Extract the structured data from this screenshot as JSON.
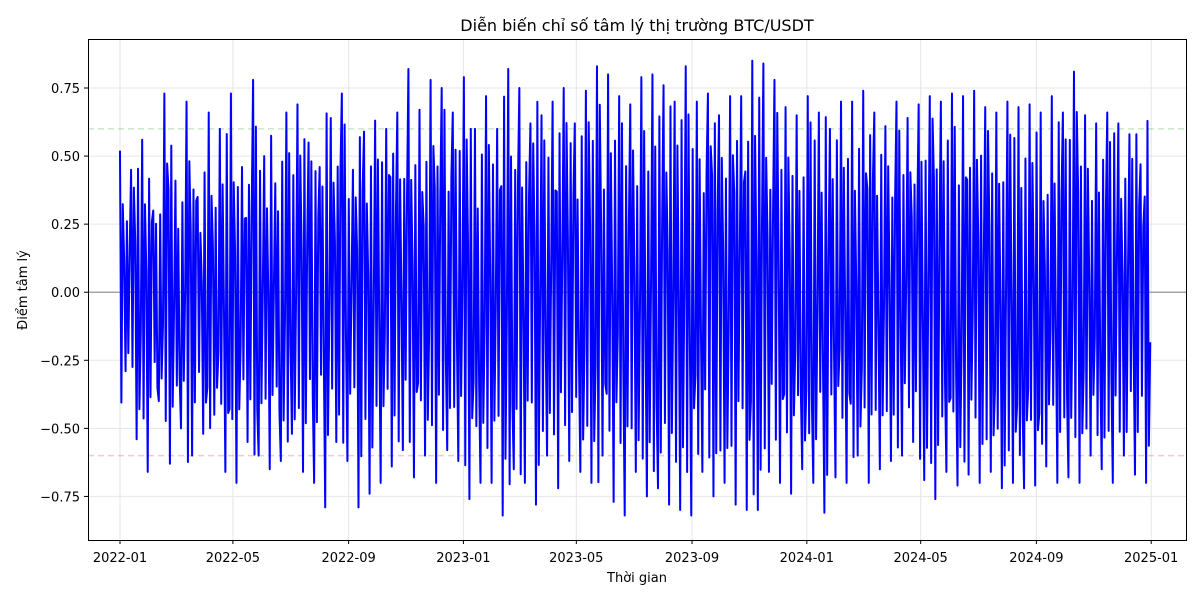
{
  "chart_data": {
    "type": "line",
    "title": "Diễn biến chỉ số tâm lý thị trường BTC/USDT",
    "xlabel": "Thời gian",
    "ylabel": "Điểm tâm lý",
    "x_range": [
      "2021-11-28",
      "2025-02-07"
    ],
    "ylim": [
      -0.91,
      0.93
    ],
    "x_ticks": [
      "2022-01",
      "2022-05",
      "2022-09",
      "2023-01",
      "2023-05",
      "2023-09",
      "2024-01",
      "2024-05",
      "2024-09",
      "2025-01"
    ],
    "y_ticks": [
      "−0.75",
      "−0.50",
      "−0.25",
      "0.00",
      "0.25",
      "0.50",
      "0.75"
    ],
    "grid": true,
    "reference_lines": [
      {
        "y": 0.6,
        "color": "#2ca02c",
        "style": "dashed"
      },
      {
        "y": 0.0,
        "color": "#000000",
        "style": "solid"
      },
      {
        "y": -0.6,
        "color": "#d62728",
        "style": "dashed"
      }
    ],
    "series": [
      {
        "color": "#0000ff",
        "x_start": "2022-01-01",
        "x_end": "2024-12-31",
        "sampling": "hourly",
        "y_min": -0.82,
        "y_max": 0.85,
        "values": [
          0.52,
          -0.29,
          0.45,
          -0.54,
          0.56,
          -0.66,
          0.3,
          -0.4,
          0.73,
          -0.63,
          0.41,
          -0.5,
          0.7,
          -0.6,
          0.35,
          -0.52,
          0.66,
          -0.45,
          0.6,
          -0.66,
          0.73,
          -0.7,
          0.46,
          -0.55,
          0.78,
          -0.6,
          0.5,
          -0.65,
          0.4,
          -0.62,
          0.66,
          -0.52,
          0.69,
          -0.66,
          0.55,
          -0.7,
          0.46,
          -0.79,
          0.64,
          -0.55,
          0.73,
          -0.62,
          0.45,
          -0.79,
          0.59,
          -0.74,
          0.63,
          -0.7,
          0.6,
          -0.64,
          0.66,
          -0.58,
          0.82,
          -0.68,
          0.67,
          -0.6,
          0.78,
          -0.7,
          0.75,
          -0.58,
          0.66,
          -0.62,
          0.79,
          -0.76,
          0.6,
          -0.7,
          0.72,
          -0.7,
          0.6,
          -0.82,
          0.82,
          -0.65,
          0.75,
          -0.7,
          0.62,
          -0.78,
          0.65,
          -0.6,
          0.7,
          -0.72,
          0.75,
          -0.62,
          0.62,
          -0.66,
          0.74,
          -0.7,
          0.83,
          -0.6,
          0.8,
          -0.77,
          0.72,
          -0.82,
          0.69,
          -0.66,
          0.79,
          -0.75,
          0.8,
          -0.72,
          0.76,
          -0.78,
          0.7,
          -0.8,
          0.83,
          -0.82,
          0.7,
          -0.66,
          0.73,
          -0.75,
          0.65,
          -0.7,
          0.72,
          -0.78,
          0.72,
          -0.8,
          0.85,
          -0.8,
          0.84,
          -0.66,
          0.78,
          -0.7,
          0.68,
          -0.74,
          0.65,
          -0.65,
          0.72,
          -0.7,
          0.66,
          -0.81,
          0.6,
          -0.68,
          0.7,
          -0.7,
          0.7,
          -0.6,
          0.74,
          -0.7,
          0.66,
          -0.65,
          0.61,
          -0.62,
          0.7,
          -0.6,
          0.64,
          -0.55,
          0.69,
          -0.69,
          0.72,
          -0.76,
          0.7,
          -0.66,
          0.73,
          -0.71,
          0.72,
          -0.67,
          0.74,
          -0.7,
          0.68,
          -0.66,
          0.66,
          -0.72,
          0.7,
          -0.7,
          0.68,
          -0.72,
          0.69,
          -0.71,
          0.66,
          -0.64,
          0.72,
          -0.7,
          0.66,
          -0.68,
          0.81,
          -0.7,
          0.65,
          -0.6,
          0.62,
          -0.65,
          0.66,
          -0.7,
          0.62,
          -0.6,
          0.58,
          -0.67,
          0.47,
          -0.7
        ]
      }
    ]
  }
}
